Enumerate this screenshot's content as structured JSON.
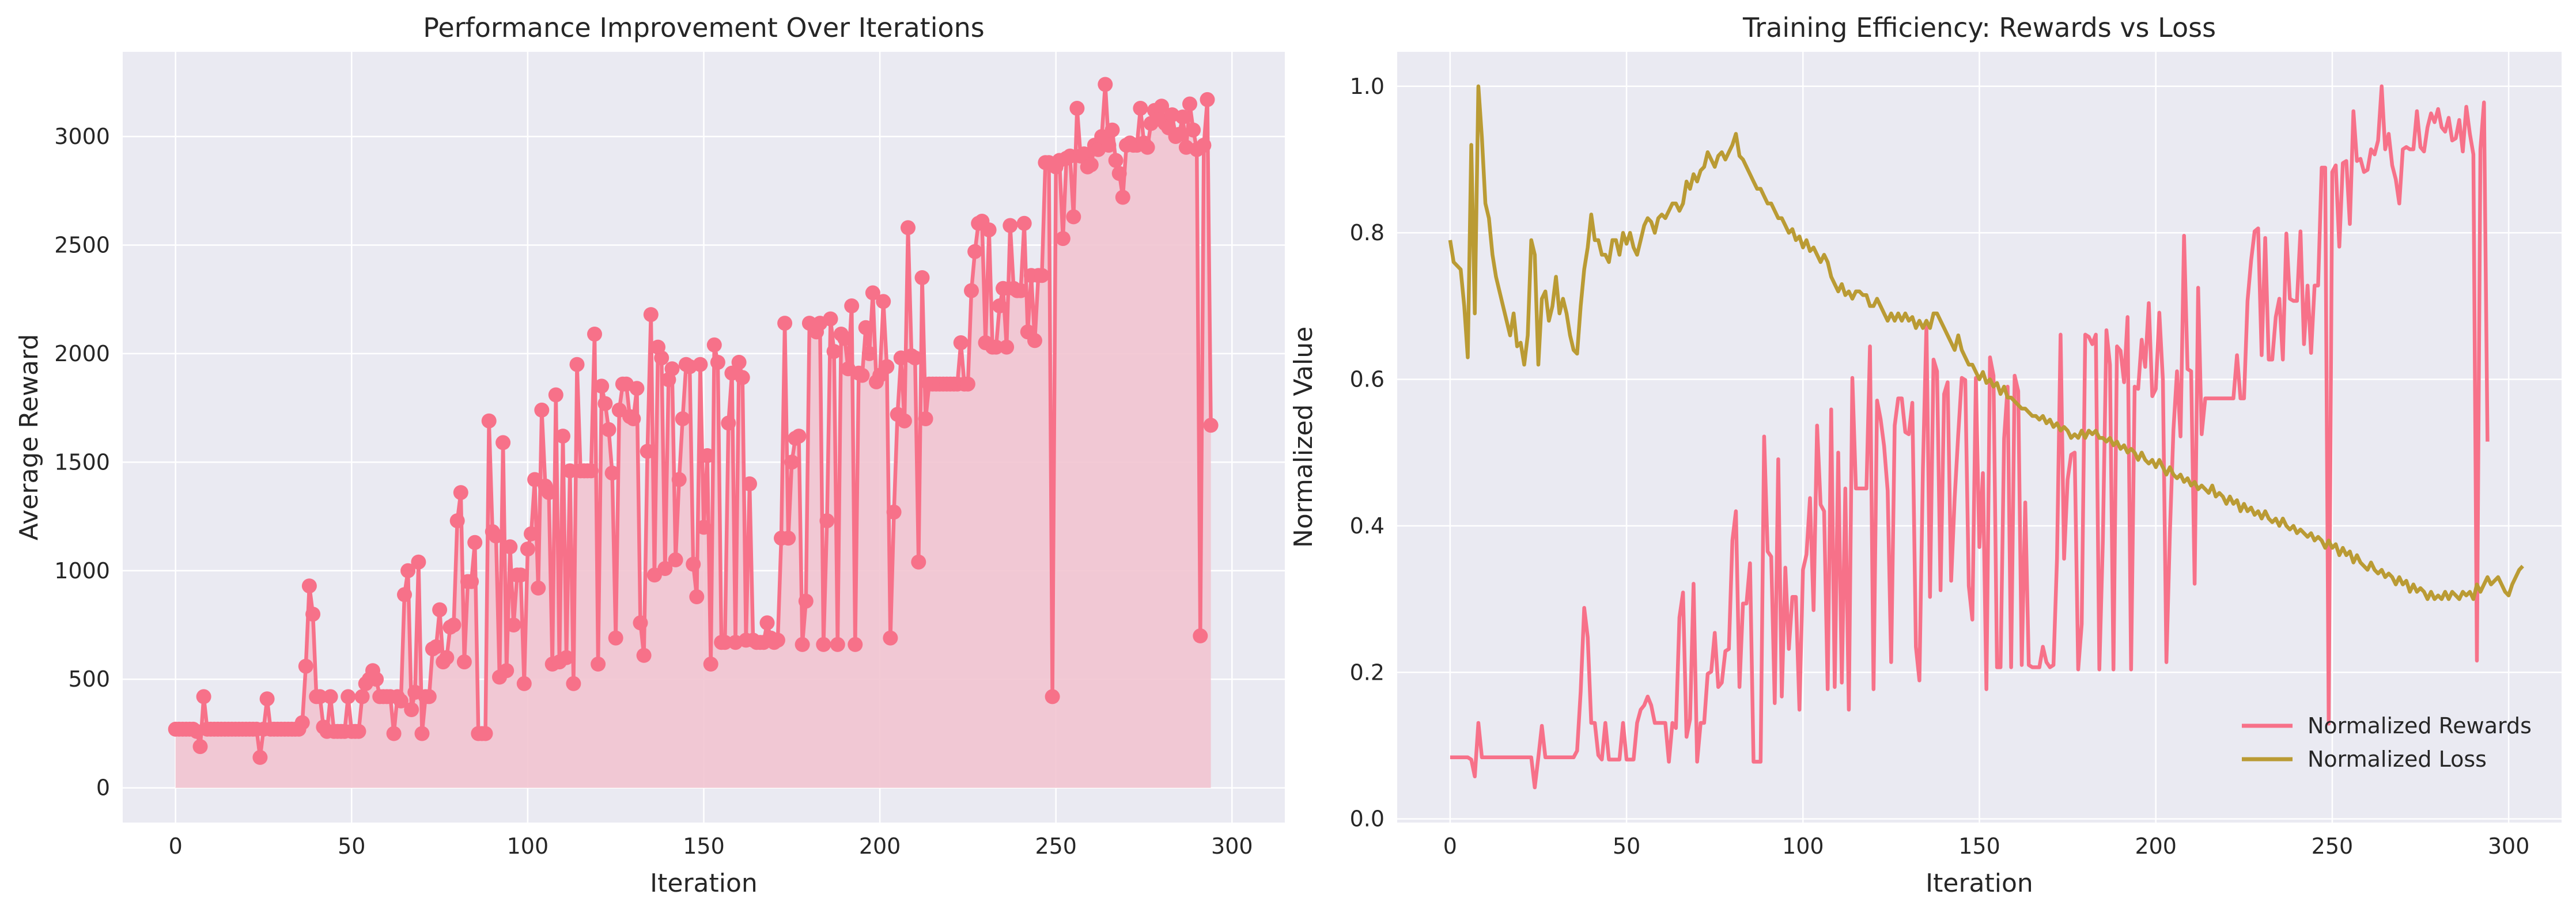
{
  "chart_data": [
    {
      "type": "line",
      "title": "Performance Improvement Over Iterations",
      "xlabel": "Iteration",
      "ylabel": "Average Reward",
      "xlim": [
        -15,
        315
      ],
      "ylim": [
        -160,
        3390
      ],
      "xticks": [
        0,
        50,
        100,
        150,
        200,
        250,
        300
      ],
      "yticks": [
        0,
        500,
        1000,
        1500,
        2000,
        2500,
        3000
      ],
      "grid": true,
      "fill_under": true,
      "markers": true,
      "series": [
        {
          "color": "#f77189",
          "x_start": 0,
          "x_step": 1,
          "values": [
            270,
            270,
            270,
            270,
            270,
            270,
            260,
            190,
            420,
            270,
            270,
            270,
            270,
            270,
            270,
            270,
            270,
            270,
            270,
            270,
            270,
            270,
            270,
            270,
            140,
            270,
            410,
            270,
            270,
            270,
            270,
            270,
            270,
            270,
            270,
            270,
            300,
            560,
            930,
            800,
            420,
            420,
            280,
            260,
            420,
            260,
            260,
            260,
            260,
            420,
            260,
            260,
            260,
            420,
            480,
            500,
            540,
            500,
            420,
            420,
            420,
            420,
            250,
            420,
            400,
            890,
            1000,
            360,
            440,
            1040,
            250,
            420,
            420,
            640,
            650,
            820,
            580,
            600,
            740,
            750,
            1230,
            1360,
            580,
            950,
            950,
            1130,
            250,
            250,
            250,
            1690,
            1180,
            1160,
            510,
            1590,
            540,
            1110,
            750,
            980,
            980,
            480,
            1100,
            1170,
            1420,
            920,
            1740,
            1390,
            1360,
            570,
            1810,
            580,
            1620,
            600,
            1460,
            480,
            1950,
            1460,
            1460,
            1460,
            1460,
            2090,
            570,
            1850,
            1770,
            1650,
            1450,
            690,
            1740,
            1860,
            1860,
            1710,
            1700,
            1840,
            760,
            610,
            1550,
            2180,
            980,
            2030,
            1980,
            1010,
            1880,
            1930,
            1050,
            1420,
            1700,
            1950,
            1940,
            1030,
            880,
            1950,
            1200,
            1530,
            570,
            2040,
            1960,
            670,
            670,
            1680,
            1910,
            670,
            1960,
            1890,
            680,
            1400,
            680,
            670,
            670,
            670,
            760,
            690,
            670,
            680,
            1150,
            2140,
            1150,
            1500,
            1610,
            1620,
            660,
            860,
            2140,
            2130,
            2100,
            2140,
            660,
            1230,
            2160,
            2010,
            660,
            2090,
            2070,
            1930,
            2220,
            660,
            1910,
            1900,
            2120,
            2000,
            2280,
            1870,
            1900,
            2240,
            1940,
            690,
            1270,
            1720,
            1980,
            1690,
            2580,
            1990,
            1980,
            1040,
            2350,
            1700,
            1860,
            1860,
            1860,
            1860,
            1860,
            1860,
            1860,
            1860,
            1860,
            2050,
            1860,
            1860,
            2290,
            2470,
            2600,
            2610,
            2050,
            2570,
            2030,
            2030,
            2220,
            2300,
            2030,
            2590,
            2300,
            2290,
            2290,
            2600,
            2100,
            2360,
            2060,
            2360,
            2360,
            2880,
            2880,
            420,
            2860,
            2890,
            2530,
            2900,
            2910,
            2630,
            3130,
            2910,
            2920,
            2860,
            2870,
            2960,
            2940,
            3000,
            3240,
            2960,
            3030,
            2890,
            2830,
            2720,
            2960,
            2970,
            2960,
            2960,
            3130,
            2970,
            2950,
            3060,
            3120,
            3080,
            3140,
            3060,
            3040,
            3100,
            3000,
            3010,
            3090,
            2950,
            3150,
            3030,
            2940,
            700,
            2960,
            3170,
            1670
          ]
        }
      ]
    },
    {
      "type": "line",
      "title": "Training Efficiency: Rewards vs Loss",
      "xlabel": "Iteration",
      "ylabel": "Normalized Value",
      "xlim": [
        -15,
        315
      ],
      "ylim": [
        -0.005,
        1.047
      ],
      "xticks": [
        0,
        50,
        100,
        150,
        200,
        250,
        300
      ],
      "yticks": [
        0.0,
        0.2,
        0.4,
        0.6,
        0.8,
        1.0
      ],
      "grid": true,
      "legend_position": "lower-right",
      "series": [
        {
          "name": "Normalized Rewards",
          "color": "#f77189",
          "x_start": 0,
          "x_step": 1,
          "values": [
            0.084,
            0.084,
            0.084,
            0.084,
            0.084,
            0.084,
            0.081,
            0.058,
            0.131,
            0.084,
            0.084,
            0.084,
            0.084,
            0.084,
            0.084,
            0.084,
            0.084,
            0.084,
            0.084,
            0.084,
            0.084,
            0.084,
            0.084,
            0.084,
            0.043,
            0.084,
            0.127,
            0.084,
            0.084,
            0.084,
            0.084,
            0.084,
            0.084,
            0.084,
            0.084,
            0.084,
            0.093,
            0.174,
            0.288,
            0.248,
            0.131,
            0.131,
            0.087,
            0.081,
            0.131,
            0.081,
            0.081,
            0.081,
            0.081,
            0.131,
            0.081,
            0.081,
            0.081,
            0.131,
            0.149,
            0.155,
            0.167,
            0.155,
            0.131,
            0.131,
            0.131,
            0.131,
            0.078,
            0.131,
            0.124,
            0.275,
            0.309,
            0.112,
            0.136,
            0.321,
            0.078,
            0.131,
            0.131,
            0.198,
            0.201,
            0.254,
            0.18,
            0.186,
            0.229,
            0.232,
            0.38,
            0.42,
            0.18,
            0.294,
            0.294,
            0.349,
            0.078,
            0.078,
            0.078,
            0.522,
            0.365,
            0.358,
            0.158,
            0.491,
            0.167,
            0.343,
            0.232,
            0.303,
            0.303,
            0.149,
            0.34,
            0.361,
            0.438,
            0.285,
            0.537,
            0.429,
            0.42,
            0.177,
            0.559,
            0.18,
            0.5,
            0.186,
            0.451,
            0.149,
            0.602,
            0.451,
            0.451,
            0.451,
            0.451,
            0.645,
            0.177,
            0.571,
            0.546,
            0.509,
            0.448,
            0.214,
            0.537,
            0.574,
            0.574,
            0.528,
            0.525,
            0.568,
            0.235,
            0.189,
            0.478,
            0.673,
            0.303,
            0.627,
            0.611,
            0.312,
            0.58,
            0.596,
            0.325,
            0.438,
            0.525,
            0.602,
            0.599,
            0.318,
            0.272,
            0.602,
            0.371,
            0.472,
            0.177,
            0.63,
            0.605,
            0.207,
            0.207,
            0.519,
            0.59,
            0.207,
            0.605,
            0.584,
            0.21,
            0.432,
            0.21,
            0.207,
            0.207,
            0.207,
            0.235,
            0.214,
            0.207,
            0.21,
            0.355,
            0.661,
            0.355,
            0.463,
            0.497,
            0.5,
            0.204,
            0.266,
            0.661,
            0.658,
            0.648,
            0.661,
            0.204,
            0.38,
            0.667,
            0.62,
            0.204,
            0.645,
            0.639,
            0.596,
            0.685,
            0.204,
            0.59,
            0.587,
            0.654,
            0.617,
            0.704,
            0.577,
            0.587,
            0.691,
            0.599,
            0.214,
            0.392,
            0.531,
            0.611,
            0.522,
            0.796,
            0.614,
            0.611,
            0.321,
            0.725,
            0.525,
            0.574,
            0.574,
            0.574,
            0.574,
            0.574,
            0.574,
            0.574,
            0.574,
            0.574,
            0.633,
            0.574,
            0.574,
            0.707,
            0.762,
            0.802,
            0.806,
            0.633,
            0.793,
            0.627,
            0.627,
            0.685,
            0.71,
            0.627,
            0.799,
            0.71,
            0.707,
            0.707,
            0.802,
            0.648,
            0.728,
            0.636,
            0.728,
            0.728,
            0.889,
            0.889,
            0.13,
            0.883,
            0.892,
            0.781,
            0.895,
            0.898,
            0.812,
            0.966,
            0.898,
            0.901,
            0.883,
            0.886,
            0.914,
            0.907,
            0.926,
            1.0,
            0.914,
            0.935,
            0.892,
            0.873,
            0.84,
            0.914,
            0.917,
            0.914,
            0.914,
            0.966,
            0.917,
            0.911,
            0.944,
            0.963,
            0.951,
            0.969,
            0.944,
            0.938,
            0.957,
            0.926,
            0.929,
            0.954,
            0.911,
            0.972,
            0.935,
            0.907,
            0.216,
            0.914,
            0.978,
            0.515
          ]
        },
        {
          "name": "Normalized Loss",
          "color": "#ba9b34",
          "x_start": 0,
          "x_step": 1,
          "values": [
            0.79,
            0.76,
            0.755,
            0.75,
            0.7,
            0.63,
            0.92,
            0.69,
            1.0,
            0.93,
            0.84,
            0.82,
            0.77,
            0.74,
            0.72,
            0.7,
            0.68,
            0.66,
            0.69,
            0.645,
            0.65,
            0.62,
            0.66,
            0.79,
            0.77,
            0.62,
            0.71,
            0.72,
            0.68,
            0.7,
            0.74,
            0.69,
            0.71,
            0.69,
            0.66,
            0.64,
            0.635,
            0.7,
            0.75,
            0.78,
            0.825,
            0.79,
            0.79,
            0.77,
            0.77,
            0.76,
            0.79,
            0.79,
            0.77,
            0.8,
            0.785,
            0.8,
            0.78,
            0.77,
            0.79,
            0.81,
            0.82,
            0.815,
            0.8,
            0.82,
            0.825,
            0.82,
            0.83,
            0.84,
            0.84,
            0.83,
            0.84,
            0.87,
            0.86,
            0.88,
            0.87,
            0.885,
            0.89,
            0.91,
            0.9,
            0.89,
            0.905,
            0.91,
            0.9,
            0.91,
            0.92,
            0.935,
            0.905,
            0.9,
            0.89,
            0.88,
            0.87,
            0.86,
            0.86,
            0.85,
            0.84,
            0.84,
            0.83,
            0.82,
            0.82,
            0.81,
            0.8,
            0.805,
            0.79,
            0.795,
            0.78,
            0.79,
            0.775,
            0.78,
            0.77,
            0.76,
            0.77,
            0.76,
            0.74,
            0.73,
            0.72,
            0.73,
            0.715,
            0.72,
            0.71,
            0.72,
            0.72,
            0.715,
            0.715,
            0.7,
            0.7,
            0.71,
            0.7,
            0.69,
            0.68,
            0.69,
            0.68,
            0.69,
            0.68,
            0.69,
            0.68,
            0.685,
            0.67,
            0.68,
            0.67,
            0.68,
            0.67,
            0.69,
            0.69,
            0.68,
            0.67,
            0.66,
            0.65,
            0.64,
            0.66,
            0.64,
            0.63,
            0.62,
            0.62,
            0.61,
            0.6,
            0.61,
            0.595,
            0.6,
            0.59,
            0.595,
            0.58,
            0.59,
            0.575,
            0.575,
            0.57,
            0.565,
            0.56,
            0.56,
            0.555,
            0.55,
            0.55,
            0.545,
            0.55,
            0.54,
            0.545,
            0.535,
            0.54,
            0.53,
            0.535,
            0.53,
            0.52,
            0.525,
            0.52,
            0.53,
            0.52,
            0.53,
            0.525,
            0.53,
            0.52,
            0.52,
            0.515,
            0.52,
            0.51,
            0.515,
            0.505,
            0.51,
            0.5,
            0.505,
            0.5,
            0.49,
            0.5,
            0.49,
            0.485,
            0.49,
            0.48,
            0.49,
            0.48,
            0.47,
            0.48,
            0.47,
            0.465,
            0.47,
            0.46,
            0.465,
            0.455,
            0.46,
            0.45,
            0.455,
            0.45,
            0.445,
            0.455,
            0.44,
            0.445,
            0.44,
            0.43,
            0.44,
            0.43,
            0.435,
            0.42,
            0.43,
            0.42,
            0.425,
            0.415,
            0.42,
            0.41,
            0.42,
            0.41,
            0.405,
            0.41,
            0.4,
            0.41,
            0.4,
            0.395,
            0.4,
            0.39,
            0.395,
            0.39,
            0.385,
            0.39,
            0.38,
            0.385,
            0.38,
            0.37,
            0.38,
            0.37,
            0.375,
            0.36,
            0.37,
            0.36,
            0.365,
            0.35,
            0.36,
            0.35,
            0.345,
            0.34,
            0.35,
            0.34,
            0.335,
            0.34,
            0.33,
            0.335,
            0.33,
            0.32,
            0.33,
            0.32,
            0.325,
            0.31,
            0.32,
            0.31,
            0.315,
            0.31,
            0.3,
            0.31,
            0.3,
            0.305,
            0.3,
            0.31,
            0.3,
            0.31,
            0.305,
            0.3,
            0.31,
            0.305,
            0.31,
            0.3,
            0.32,
            0.31,
            0.32,
            0.33,
            0.32,
            0.325,
            0.33,
            0.32,
            0.31,
            0.305,
            0.32,
            0.33,
            0.34,
            0.345
          ]
        }
      ]
    }
  ],
  "colors": {
    "plot_background": "#eaeaf2",
    "grid": "#ffffff",
    "fill": "#f2c4d0"
  }
}
